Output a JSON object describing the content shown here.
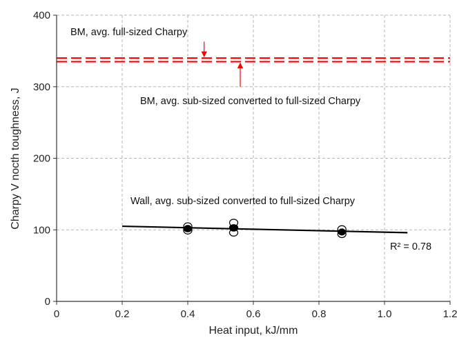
{
  "chart_data": {
    "type": "scatter",
    "xlabel": "Heat input, kJ/mm",
    "ylabel": "Charpy V nocth toughness, J",
    "xlim": [
      0,
      1.2
    ],
    "ylim": [
      0,
      400
    ],
    "x_ticks": [
      0,
      0.2,
      0.4,
      0.6,
      0.8,
      1.0,
      1.2
    ],
    "x_tick_labels": [
      "0",
      "0.2",
      "0.4",
      "0.6",
      "0.8",
      "1.0",
      "1.2"
    ],
    "y_ticks": [
      0,
      100,
      200,
      300,
      400
    ],
    "y_tick_labels": [
      "0",
      "100",
      "200",
      "300",
      "400"
    ],
    "grid": true,
    "series": [
      {
        "marker": "open-circle",
        "color": "#000000",
        "points": [
          {
            "x": 0.4,
            "y": 99
          },
          {
            "x": 0.4,
            "y": 102
          },
          {
            "x": 0.4,
            "y": 105
          },
          {
            "x": 0.54,
            "y": 96
          },
          {
            "x": 0.54,
            "y": 103
          },
          {
            "x": 0.54,
            "y": 110
          },
          {
            "x": 0.87,
            "y": 94
          },
          {
            "x": 0.87,
            "y": 98
          },
          {
            "x": 0.87,
            "y": 101
          }
        ]
      },
      {
        "marker": "filled-circle",
        "color": "#000000",
        "points": [
          {
            "x": 0.4,
            "y": 102
          },
          {
            "x": 0.54,
            "y": 103
          },
          {
            "x": 0.87,
            "y": 97
          }
        ]
      }
    ],
    "trendline": {
      "x": [
        0.2,
        1.07
      ],
      "y": [
        105,
        96
      ],
      "color": "#000000"
    },
    "reference_lines": [
      {
        "y": 340,
        "color": "#ff0000",
        "style": "dashed"
      },
      {
        "y": 335,
        "color": "#ff0000",
        "style": "dashed"
      }
    ],
    "annotations": [
      {
        "text": "BM, avg. full-sized Charpy",
        "arrow": {
          "x": 0.45,
          "y_from": 363,
          "y_to": 342
        }
      },
      {
        "text": "BM, avg. sub-sized converted to full-sized Charpy",
        "arrow": {
          "x": 0.56,
          "y_from": 300,
          "y_to": 333
        }
      },
      {
        "text": "Wall, avg. sub-sized converted to full-sized Charpy"
      },
      {
        "text": "R² = 0.78"
      }
    ]
  }
}
